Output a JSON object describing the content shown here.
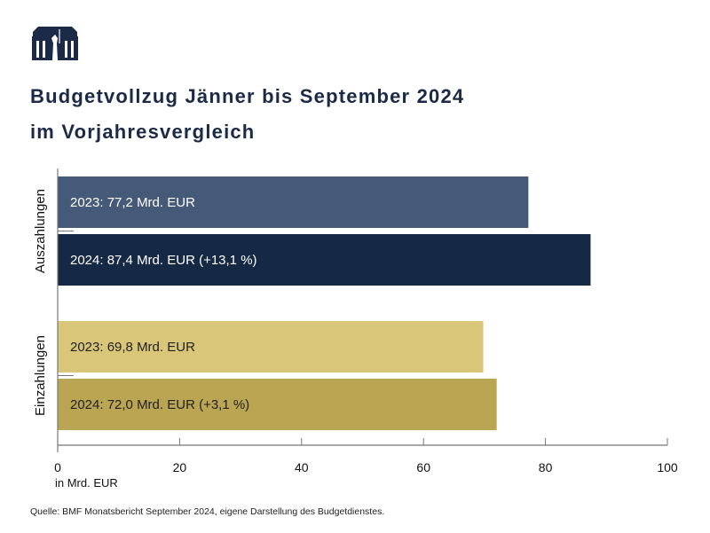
{
  "logo": {
    "name": "parliament-building-logo",
    "color": "#1b2a47"
  },
  "chart_data": {
    "type": "bar",
    "orientation": "horizontal",
    "title": "Budgetvollzug Jänner bis September 2024",
    "subtitle": "im Vorjahresvergleich",
    "xlabel": "in Mrd. EUR",
    "xlim": [
      0,
      100
    ],
    "xticks": [
      "0",
      "20",
      "40",
      "60",
      "80",
      "100"
    ],
    "grid": false,
    "groups": [
      {
        "name": "Auszahlungen",
        "bars": [
          {
            "year": "2023",
            "value": 77.2,
            "label": "2023: 77,2 Mrd. EUR",
            "color": "#445a78",
            "text_color": "#ffffff"
          },
          {
            "year": "2024",
            "value": 87.4,
            "label": "2024: 87,4 Mrd. EUR (+13,1 %)",
            "color": "#152844",
            "text_color": "#ffffff"
          }
        ]
      },
      {
        "name": "Einzahlungen",
        "bars": [
          {
            "year": "2023",
            "value": 69.8,
            "label": "2023: 69,8 Mrd. EUR",
            "color": "#d9c679",
            "text_color": "#222222"
          },
          {
            "year": "2024",
            "value": 72.0,
            "label": "2024: 72,0 Mrd. EUR (+3,1 %)",
            "color": "#b9a552",
            "text_color": "#222222"
          }
        ]
      }
    ]
  },
  "source": "Quelle: BMF Monatsbericht September 2024, eigene Darstellung des Budgetdienstes."
}
